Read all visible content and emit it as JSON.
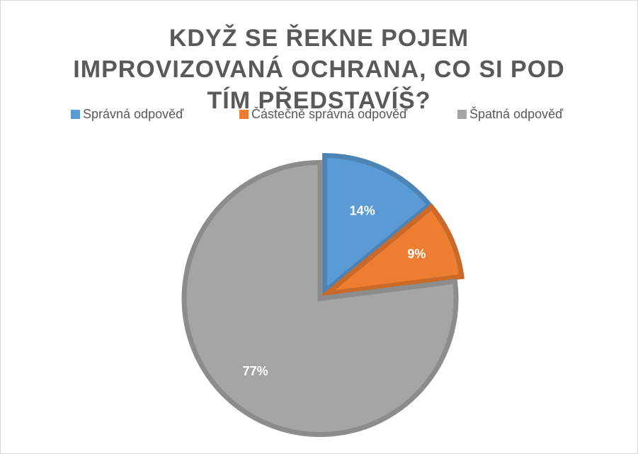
{
  "chart_data": {
    "type": "pie",
    "title": "KDYŽ SE ŘEKNE POJEM IMPROVIZOVANÁ OCHRANA, CO SI POD TÍM PŘEDSTAVÍŠ?",
    "categories": [
      "Správná odpověď",
      "Částečně správná odpověď",
      "Špatná odpověď"
    ],
    "values": [
      14,
      9,
      77
    ],
    "value_labels": [
      "14%",
      "9%",
      "77%"
    ],
    "colors": [
      "#5b9bd5",
      "#ed7d31",
      "#a5a5a5"
    ],
    "legend": "top"
  }
}
